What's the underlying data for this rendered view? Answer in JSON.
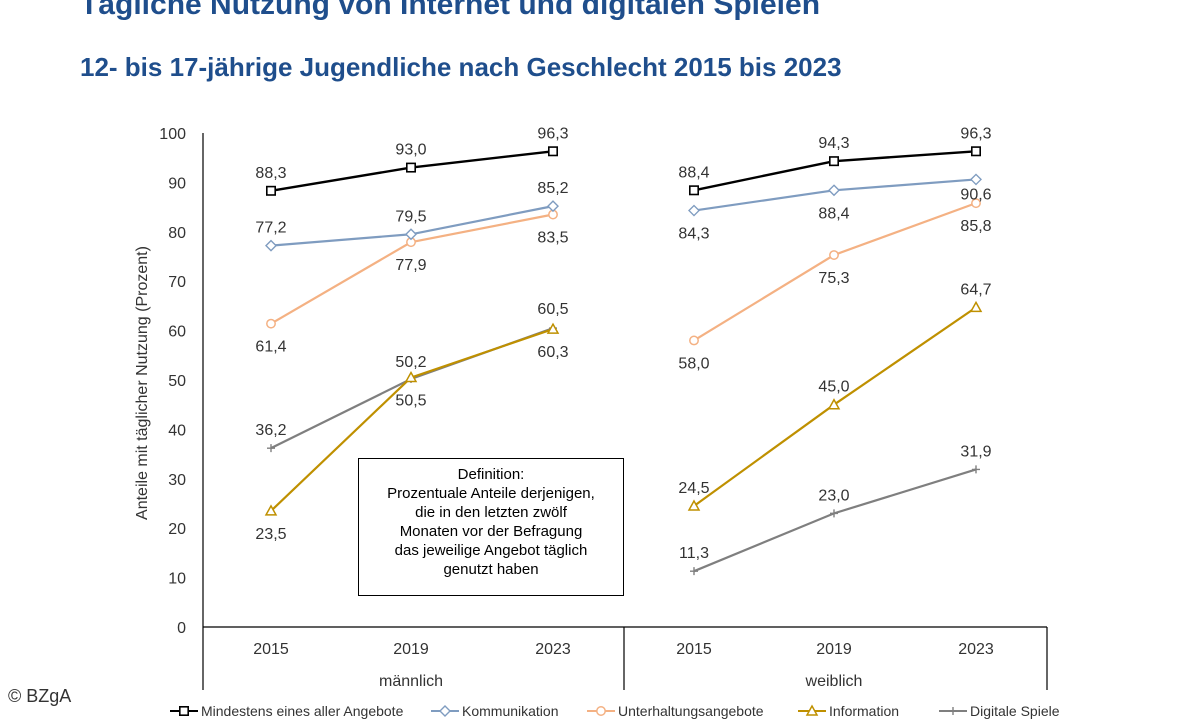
{
  "header": {
    "title": "Tägliche Nutzung von Internet und digitalen Spielen",
    "subtitle": "12- bis 17-jährige Jugendliche nach Geschlecht 2015 bis 2023"
  },
  "copyright": "© BZgA",
  "definition": {
    "lines": [
      "Definition:",
      "Prozentuale Anteile derjenigen,",
      "die in den letzten zwölf",
      "Monaten vor der Befragung",
      "das jeweilige Angebot täglich",
      "genutzt haben"
    ]
  },
  "chart_data": {
    "type": "line",
    "ylabel": "Anteile mit täglicher Nutzung (Prozent)",
    "ylim": [
      0,
      100
    ],
    "yticks": [
      "0",
      "10",
      "20",
      "30",
      "40",
      "50",
      "60",
      "70",
      "80",
      "90",
      "100"
    ],
    "groups": [
      {
        "name": "männlich",
        "categories": [
          "2015",
          "2019",
          "2023"
        ]
      },
      {
        "name": "weiblich",
        "categories": [
          "2015",
          "2019",
          "2023"
        ]
      }
    ],
    "series": [
      {
        "name": "Mindestens eines aller Angebote",
        "color": "#000000",
        "marker": "square",
        "values": [
          [
            88.3,
            93.0,
            96.3
          ],
          [
            88.4,
            94.3,
            96.3
          ]
        ],
        "labels": [
          [
            "88,3",
            "93,0",
            "96,3"
          ],
          [
            "88,4",
            "94,3",
            "96,3"
          ]
        ]
      },
      {
        "name": "Kommunikation",
        "color": "#7f9cc0",
        "marker": "diamond",
        "values": [
          [
            77.2,
            79.5,
            85.2
          ],
          [
            84.3,
            88.4,
            90.6
          ]
        ],
        "labels": [
          [
            "77,2",
            "79,5",
            "85,2"
          ],
          [
            "84,3",
            "88,4",
            "90,6"
          ]
        ]
      },
      {
        "name": "Unterhaltungsangebote",
        "color": "#f4b183",
        "marker": "circle",
        "values": [
          [
            61.4,
            77.9,
            83.5
          ],
          [
            58.0,
            75.3,
            85.8
          ]
        ],
        "labels": [
          [
            "61,4",
            "77,9",
            "83,5"
          ],
          [
            "58,0",
            "75,3",
            "85,8"
          ]
        ]
      },
      {
        "name": "Information",
        "color": "#bf9000",
        "marker": "triangle",
        "values": [
          [
            23.5,
            50.5,
            60.3
          ],
          [
            24.5,
            45.0,
            64.7
          ]
        ],
        "labels": [
          [
            "23,5",
            "50,5",
            "60,3"
          ],
          [
            "24,5",
            "45,0",
            "64,7"
          ]
        ]
      },
      {
        "name": "Digitale Spiele",
        "color": "#7f7f7f",
        "marker": "plus",
        "values": [
          [
            36.2,
            50.2,
            60.5
          ],
          [
            11.3,
            23.0,
            31.9
          ]
        ],
        "labels": [
          [
            "36,2",
            "50,2",
            "60,5"
          ],
          [
            "11,3",
            "23,0",
            "31,9"
          ]
        ]
      }
    ]
  }
}
